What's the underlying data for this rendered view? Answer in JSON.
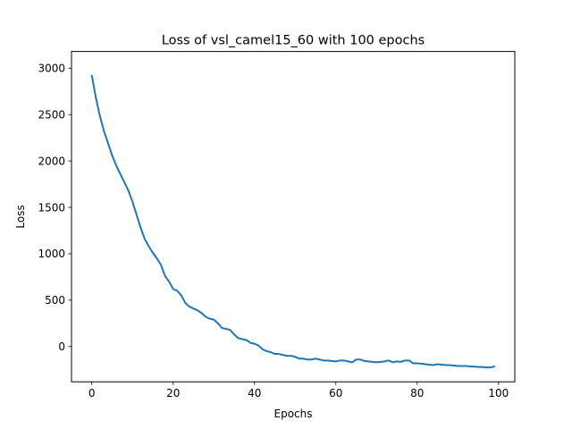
{
  "chart_data": {
    "type": "line",
    "title": "Loss of vsl_camel15_60 with 100 epochs",
    "xlabel": "Epochs",
    "ylabel": "Loss",
    "xlim": [
      -5,
      104
    ],
    "ylim": [
      -380,
      3180
    ],
    "xticks": [
      0,
      20,
      40,
      60,
      80,
      100
    ],
    "yticks": [
      0,
      500,
      1000,
      1500,
      2000,
      2500,
      3000
    ],
    "grid": false,
    "series": [
      {
        "color": "#1f77b4",
        "x": [
          0,
          1,
          2,
          3,
          4,
          5,
          6,
          7,
          8,
          9,
          10,
          11,
          12,
          13,
          14,
          15,
          16,
          17,
          18,
          19,
          20,
          21,
          22,
          23,
          24,
          25,
          26,
          27,
          28,
          29,
          30,
          31,
          32,
          33,
          34,
          35,
          36,
          37,
          38,
          39,
          40,
          41,
          42,
          43,
          44,
          45,
          46,
          47,
          48,
          49,
          50,
          51,
          52,
          53,
          54,
          55,
          56,
          57,
          58,
          59,
          60,
          61,
          62,
          63,
          64,
          65,
          66,
          67,
          68,
          69,
          70,
          71,
          72,
          73,
          74,
          75,
          76,
          77,
          78,
          79,
          80,
          81,
          82,
          83,
          84,
          85,
          86,
          87,
          88,
          89,
          90,
          91,
          92,
          93,
          94,
          95,
          96,
          97,
          98,
          99
        ],
        "values": [
          2920,
          2680,
          2480,
          2320,
          2190,
          2060,
          1950,
          1860,
          1770,
          1680,
          1560,
          1420,
          1280,
          1160,
          1080,
          1010,
          950,
          880,
          760,
          700,
          620,
          600,
          550,
          470,
          430,
          410,
          390,
          360,
          320,
          300,
          290,
          250,
          200,
          190,
          180,
          130,
          90,
          80,
          70,
          40,
          30,
          10,
          -30,
          -50,
          -60,
          -80,
          -80,
          -90,
          -100,
          -100,
          -110,
          -130,
          -130,
          -140,
          -140,
          -130,
          -140,
          -150,
          -150,
          -155,
          -160,
          -150,
          -150,
          -160,
          -170,
          -140,
          -140,
          -155,
          -160,
          -165,
          -170,
          -165,
          -160,
          -150,
          -170,
          -160,
          -165,
          -150,
          -150,
          -180,
          -180,
          -185,
          -190,
          -195,
          -200,
          -190,
          -195,
          -200,
          -200,
          -205,
          -210,
          -210,
          -210,
          -215,
          -215,
          -220,
          -220,
          -225,
          -225,
          -215
        ]
      }
    ]
  }
}
